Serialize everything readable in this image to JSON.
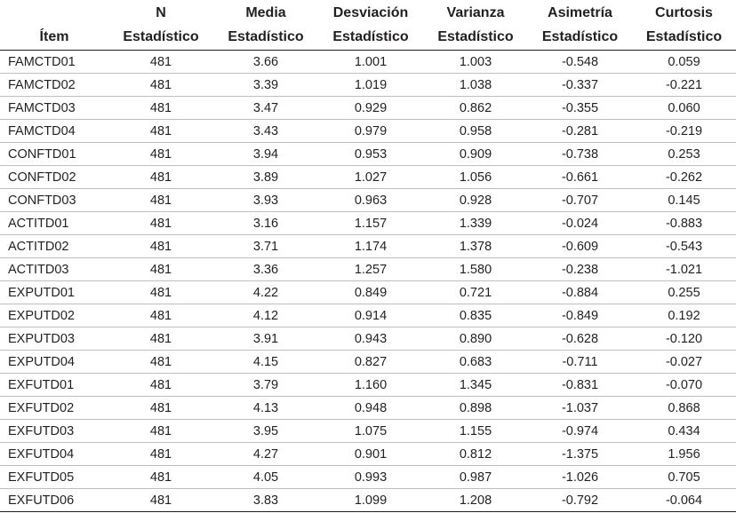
{
  "header": {
    "top": [
      "",
      "N",
      "Media",
      "Desviación",
      "Varianza",
      "Asimetría",
      "Curtosis"
    ],
    "sub": [
      "Ítem",
      "Estadístico",
      "Estadístico",
      "Estadístico",
      "Estadístico",
      "Estadístico",
      "Estadístico"
    ]
  },
  "rows": [
    [
      "FAMCTD01",
      "481",
      "3.66",
      "1.001",
      "1.003",
      "-0.548",
      "0.059"
    ],
    [
      "FAMCTD02",
      "481",
      "3.39",
      "1.019",
      "1.038",
      "-0.337",
      "-0.221"
    ],
    [
      "FAMCTD03",
      "481",
      "3.47",
      "0.929",
      "0.862",
      "-0.355",
      "0.060"
    ],
    [
      "FAMCTD04",
      "481",
      "3.43",
      "0.979",
      "0.958",
      "-0.281",
      "-0.219"
    ],
    [
      "CONFTD01",
      "481",
      "3.94",
      "0.953",
      "0.909",
      "-0.738",
      "0.253"
    ],
    [
      "CONFTD02",
      "481",
      "3.89",
      "1.027",
      "1.056",
      "-0.661",
      "-0.262"
    ],
    [
      "CONFTD03",
      "481",
      "3.93",
      "0.963",
      "0.928",
      "-0.707",
      "0.145"
    ],
    [
      "ACTITD01",
      "481",
      "3.16",
      "1.157",
      "1.339",
      "-0.024",
      "-0.883"
    ],
    [
      "ACTITD02",
      "481",
      "3.71",
      "1.174",
      "1.378",
      "-0.609",
      "-0.543"
    ],
    [
      "ACTITD03",
      "481",
      "3.36",
      "1.257",
      "1.580",
      "-0.238",
      "-1.021"
    ],
    [
      "EXPUTD01",
      "481",
      "4.22",
      "0.849",
      "0.721",
      "-0.884",
      "0.255"
    ],
    [
      "EXPUTD02",
      "481",
      "4.12",
      "0.914",
      "0.835",
      "-0.849",
      "0.192"
    ],
    [
      "EXPUTD03",
      "481",
      "3.91",
      "0.943",
      "0.890",
      "-0.628",
      "-0.120"
    ],
    [
      "EXPUTD04",
      "481",
      "4.15",
      "0.827",
      "0.683",
      "-0.711",
      "-0.027"
    ],
    [
      "EXFUTD01",
      "481",
      "3.79",
      "1.160",
      "1.345",
      "-0.831",
      "-0.070"
    ],
    [
      "EXFUTD02",
      "481",
      "4.13",
      "0.948",
      "0.898",
      "-1.037",
      "0.868"
    ],
    [
      "EXFUTD03",
      "481",
      "3.95",
      "1.075",
      "1.155",
      "-0.974",
      "0.434"
    ],
    [
      "EXFUTD04",
      "481",
      "4.27",
      "0.901",
      "0.812",
      "-1.375",
      "1.956"
    ],
    [
      "EXFUTD05",
      "481",
      "4.05",
      "0.993",
      "0.987",
      "-1.026",
      "0.705"
    ],
    [
      "EXFUTD06",
      "481",
      "3.83",
      "1.099",
      "1.208",
      "-0.792",
      "-0.064"
    ]
  ]
}
